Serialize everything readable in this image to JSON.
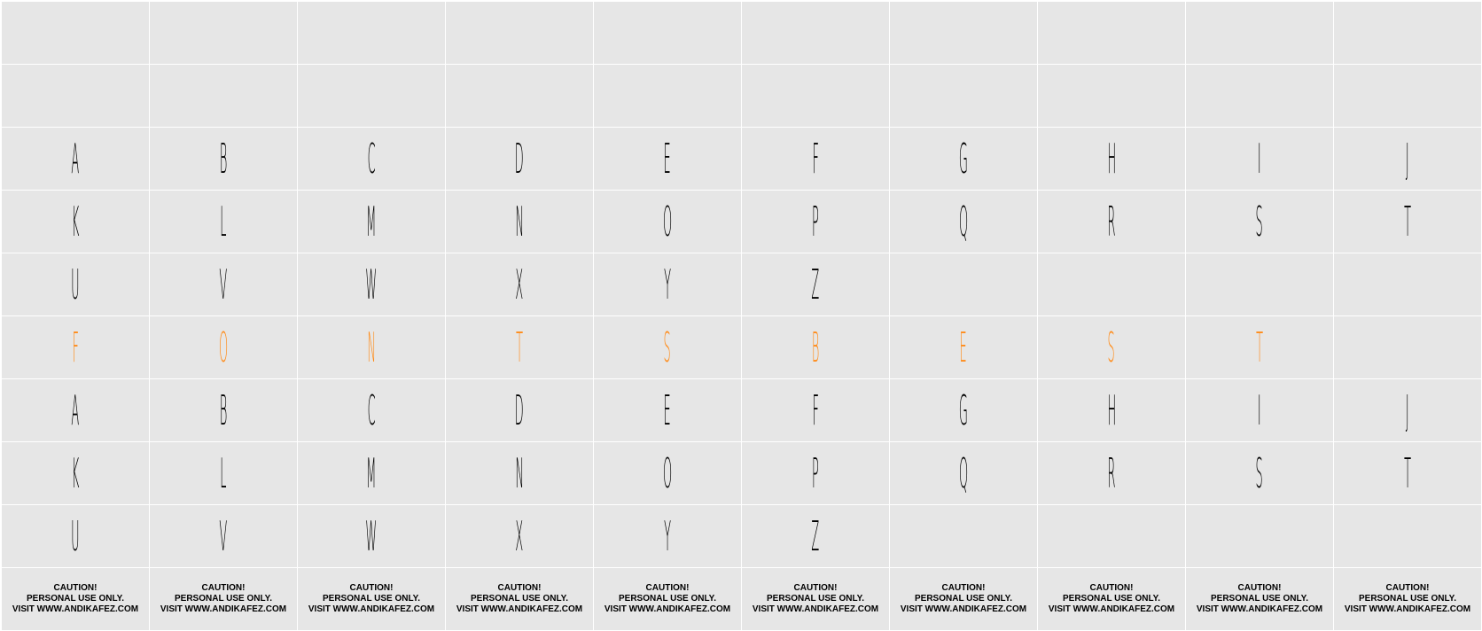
{
  "colors": {
    "background": "#e6e6e6",
    "grid_lines": "#ffffff",
    "glyph": "#000000",
    "accent": "#ff8c1a"
  },
  "rows": [
    {
      "style": "normal",
      "cells": [
        "",
        "",
        "",
        "",
        "",
        "",
        "",
        "",
        "",
        ""
      ]
    },
    {
      "style": "normal",
      "cells": [
        "",
        "",
        "",
        "",
        "",
        "",
        "",
        "",
        "",
        ""
      ]
    },
    {
      "style": "normal",
      "cells": [
        "A",
        "B",
        "C",
        "D",
        "E",
        "F",
        "G",
        "H",
        "I",
        "J"
      ]
    },
    {
      "style": "normal",
      "cells": [
        "K",
        "L",
        "M",
        "N",
        "O",
        "P",
        "Q",
        "R",
        "S",
        "T"
      ]
    },
    {
      "style": "normal",
      "cells": [
        "U",
        "V",
        "W",
        "X",
        "Y",
        "Z",
        "",
        "",
        "",
        ""
      ]
    },
    {
      "style": "accent",
      "cells": [
        "F",
        "O",
        "N",
        "T",
        "S",
        "B",
        "E",
        "S",
        "T",
        ""
      ]
    },
    {
      "style": "normal",
      "cells": [
        "A",
        "B",
        "C",
        "D",
        "E",
        "F",
        "G",
        "H",
        "I",
        "J"
      ]
    },
    {
      "style": "normal",
      "cells": [
        "K",
        "L",
        "M",
        "N",
        "O",
        "P",
        "Q",
        "R",
        "S",
        "T"
      ]
    },
    {
      "style": "normal",
      "cells": [
        "U",
        "V",
        "W",
        "X",
        "Y",
        "Z",
        "",
        "",
        "",
        ""
      ]
    }
  ],
  "caution": {
    "line1": "CAUTION!",
    "line2": "PERSONAL USE ONLY.",
    "line3": "VISIT WWW.ANDIKAFEZ.COM"
  }
}
